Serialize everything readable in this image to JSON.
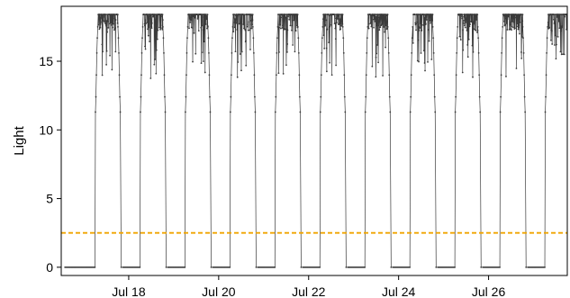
{
  "chart_data": {
    "type": "line",
    "title": "",
    "xlabel": "",
    "ylabel": "Light",
    "ylim": [
      -0.6,
      19.0
    ],
    "yticks": [
      0,
      5,
      10,
      15
    ],
    "xlim": [
      "2020-07-16T12:00",
      "2020-07-27T18:00"
    ],
    "xticks": [
      {
        "label": "Jul 18",
        "date": "2020-07-18"
      },
      {
        "label": "Jul 20",
        "date": "2020-07-20"
      },
      {
        "label": "Jul 22",
        "date": "2020-07-22"
      },
      {
        "label": "Jul 24",
        "date": "2020-07-24"
      },
      {
        "label": "Jul 26",
        "date": "2020-07-26"
      }
    ],
    "grid": false,
    "series": [
      {
        "color": "#3a3a3a",
        "days": [
          {
            "day": "2020-07-16",
            "night_start": "2020-07-16T14:00",
            "dawn": "2020-07-17T06:00",
            "dusk": "2020-07-17T20:00",
            "day_max": 18.4
          },
          {
            "day": "2020-07-17",
            "dawn": "2020-07-18T06:00",
            "dusk": "2020-07-18T20:00",
            "day_max": 18.4
          },
          {
            "day": "2020-07-18",
            "dawn": "2020-07-19T06:00",
            "dusk": "2020-07-19T20:00",
            "day_max": 18.4
          },
          {
            "day": "2020-07-19",
            "dawn": "2020-07-20T06:00",
            "dusk": "2020-07-20T20:00",
            "day_max": 18.4
          },
          {
            "day": "2020-07-20",
            "dawn": "2020-07-21T06:00",
            "dusk": "2020-07-21T20:00",
            "day_max": 18.4
          },
          {
            "day": "2020-07-21",
            "dawn": "2020-07-22T06:00",
            "dusk": "2020-07-22T20:00",
            "day_max": 18.4
          },
          {
            "day": "2020-07-22",
            "dawn": "2020-07-23T06:00",
            "dusk": "2020-07-23T20:00",
            "day_max": 18.4
          },
          {
            "day": "2020-07-23",
            "dawn": "2020-07-24T06:00",
            "dusk": "2020-07-24T20:00",
            "day_max": 18.4
          },
          {
            "day": "2020-07-24",
            "dawn": "2020-07-25T06:00",
            "dusk": "2020-07-25T20:00",
            "day_max": 18.4
          },
          {
            "day": "2020-07-25",
            "dawn": "2020-07-26T06:00",
            "dusk": "2020-07-26T20:00",
            "day_max": 18.4
          },
          {
            "day": "2020-07-26",
            "dawn": "2020-07-27T06:00",
            "dusk": "2020-07-27T20:00",
            "day_max": 18.4
          }
        ],
        "night_value": 0,
        "edge_values": [
          11.3,
          12.4,
          14.0,
          15.6,
          16.7,
          17.5
        ]
      }
    ],
    "threshold": {
      "value": 2.5,
      "color": "#f0a500",
      "style": "dashed"
    }
  }
}
